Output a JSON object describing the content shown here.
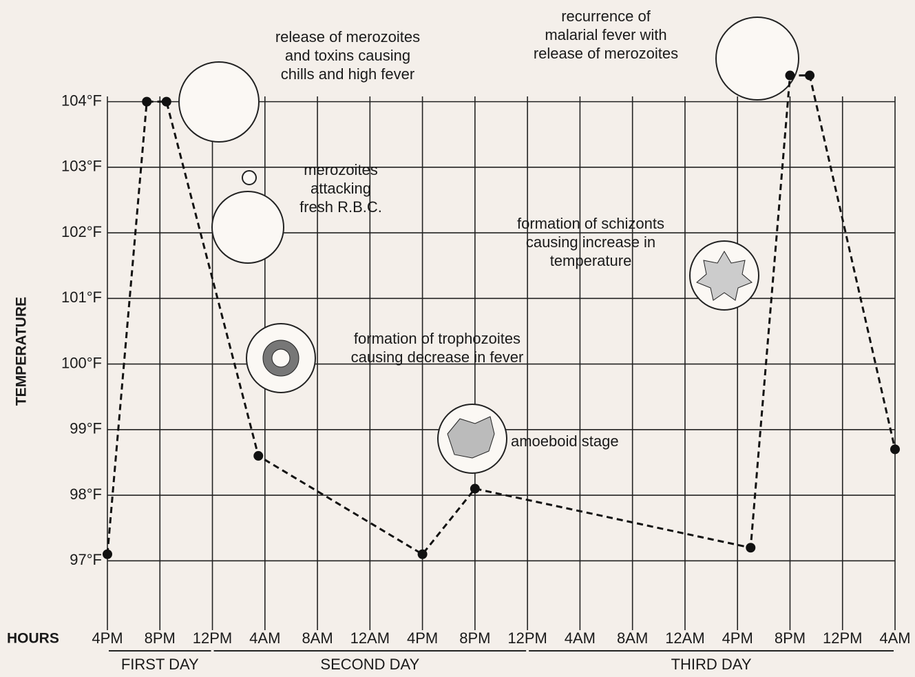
{
  "chart_data": {
    "type": "line",
    "x_label": "HOURS",
    "y_label": "TEMPERATURE",
    "x": [
      0,
      3,
      4.5,
      11.5,
      24,
      28,
      49,
      52,
      53.5,
      60
    ],
    "series": [
      {
        "color": "#111111",
        "values": [
          97.1,
          104,
          104,
          98.6,
          97.1,
          98.1,
          97.2,
          104.4,
          104.4,
          98.7
        ]
      }
    ],
    "xlim": [
      0,
      60
    ],
    "xticks": [
      {
        "value": 0,
        "label": "4PM"
      },
      {
        "value": 4,
        "label": "8PM"
      },
      {
        "value": 8,
        "label": "12PM"
      },
      {
        "value": 12,
        "label": "4AM"
      },
      {
        "value": 16,
        "label": "8AM"
      },
      {
        "value": 20,
        "label": "12AM"
      },
      {
        "value": 24,
        "label": "4PM"
      },
      {
        "value": 28,
        "label": "8PM"
      },
      {
        "value": 32,
        "label": "12PM"
      },
      {
        "value": 36,
        "label": "4AM"
      },
      {
        "value": 40,
        "label": "8AM"
      },
      {
        "value": 44,
        "label": "12AM"
      },
      {
        "value": 48,
        "label": "4PM"
      },
      {
        "value": 52,
        "label": "8PM"
      },
      {
        "value": 56,
        "label": "12PM"
      },
      {
        "value": 60,
        "label": "4AM"
      }
    ],
    "ylim": [
      96.1,
      104.5
    ],
    "yticks": [
      {
        "value": 97,
        "label": "97°F"
      },
      {
        "value": 98,
        "label": "98°F"
      },
      {
        "value": 99,
        "label": "99°F"
      },
      {
        "value": 100,
        "label": "100°F"
      },
      {
        "value": 101,
        "label": "101°F"
      },
      {
        "value": 102,
        "label": "102°F"
      },
      {
        "value": 103,
        "label": "103°F"
      },
      {
        "value": 104,
        "label": "104°F"
      }
    ],
    "grid": true,
    "days": [
      "FIRST DAY",
      "SECOND DAY",
      "THIRD DAY"
    ],
    "annotations": [
      [
        "release of merozoites",
        "and toxins causing",
        "chills and high fever"
      ],
      [
        "recurrence of",
        "malarial fever with",
        "release of merozoites"
      ],
      [
        "merozoites",
        "attacking",
        "fresh R.B.C."
      ],
      [
        "formation of schizonts",
        "causing increase in",
        "temperature"
      ],
      [
        "formation of  trophozoites",
        "causing decrease in fever"
      ],
      [
        "amoeboid stage"
      ]
    ]
  }
}
